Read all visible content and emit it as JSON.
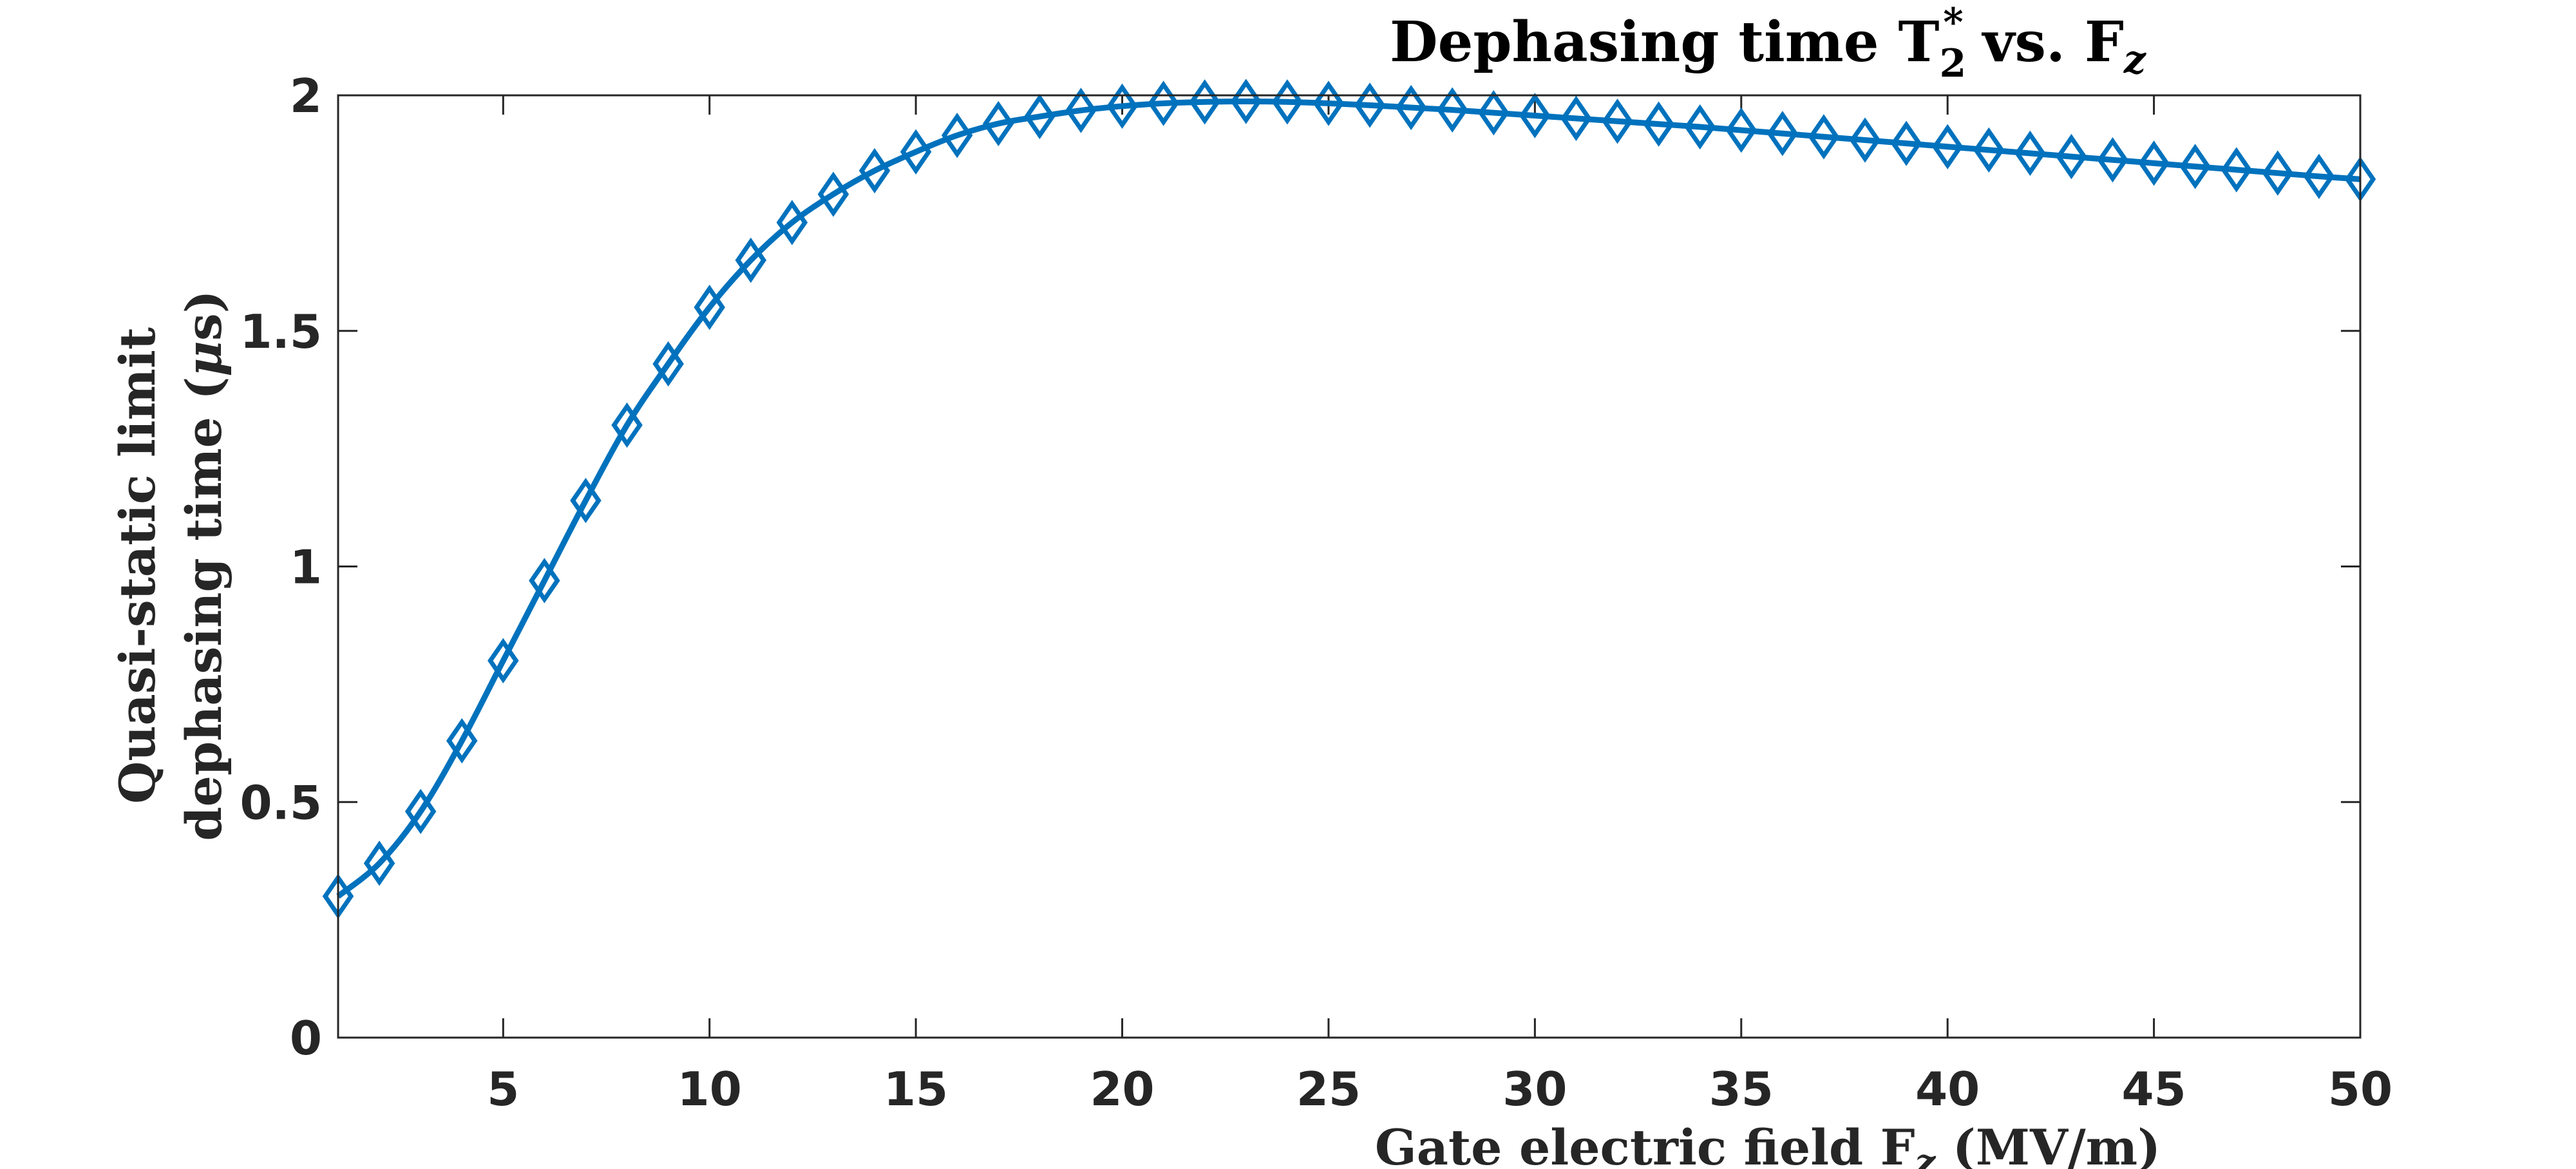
{
  "chart_data": {
    "type": "line",
    "title": {
      "main": "Dephasing time T",
      "sub": "2",
      "sup": "*",
      "vs": " vs.  F",
      "var_sub": "z"
    },
    "xlabel": {
      "main": "Gate electric field F",
      "sub": "z",
      "unit": " (MV/m)"
    },
    "ylabel": {
      "line1": "Quasi-static limit",
      "line2_main": "dephasing time (",
      "line2_mu": "μ",
      "line2_end": "s)"
    },
    "xlim": [
      1,
      50
    ],
    "ylim": [
      0,
      2
    ],
    "xticks": [
      5,
      10,
      15,
      20,
      25,
      30,
      35,
      40,
      45,
      50
    ],
    "xtick_labels": [
      "5",
      "10",
      "15",
      "20",
      "25",
      "30",
      "35",
      "40",
      "45",
      "50"
    ],
    "yticks": [
      0,
      0.5,
      1,
      1.5,
      2
    ],
    "ytick_labels": [
      "0",
      "0.5",
      "1",
      "1.5",
      "2"
    ],
    "grid": false,
    "series": [
      {
        "name": "T2*",
        "color": "#0072BD",
        "marker": "diamond",
        "x": [
          1,
          2,
          3,
          4,
          5,
          6,
          7,
          8,
          9,
          10,
          11,
          12,
          13,
          14,
          15,
          16,
          17,
          18,
          19,
          20,
          21,
          22,
          23,
          24,
          25,
          26,
          27,
          28,
          29,
          30,
          31,
          32,
          33,
          34,
          35,
          36,
          37,
          38,
          39,
          40,
          41,
          42,
          43,
          44,
          45,
          46,
          47,
          48,
          49,
          50
        ],
        "values": [
          0.3,
          0.37,
          0.48,
          0.63,
          0.8,
          0.97,
          1.14,
          1.3,
          1.43,
          1.55,
          1.65,
          1.73,
          1.79,
          1.84,
          1.88,
          1.915,
          1.94,
          1.955,
          1.968,
          1.977,
          1.983,
          1.986,
          1.987,
          1.986,
          1.983,
          1.979,
          1.974,
          1.969,
          1.963,
          1.957,
          1.951,
          1.945,
          1.939,
          1.933,
          1.926,
          1.919,
          1.912,
          1.905,
          1.898,
          1.891,
          1.884,
          1.877,
          1.87,
          1.863,
          1.856,
          1.849,
          1.842,
          1.835,
          1.828,
          1.822
        ]
      }
    ]
  }
}
